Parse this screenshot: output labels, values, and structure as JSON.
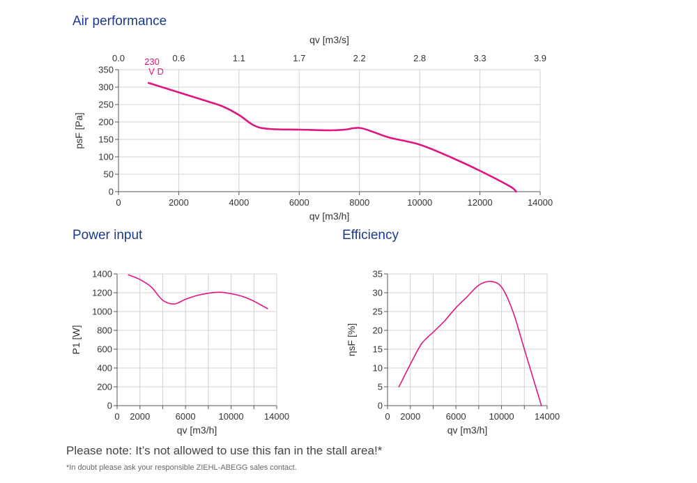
{
  "colors": {
    "curve": "#e0157f",
    "title": "#1a3a8c",
    "grid": "#d0d0d0"
  },
  "titles": {
    "air": "Air performance",
    "power": "Power input",
    "efficiency": "Efficiency"
  },
  "notes": {
    "stall": "Please note: It’s not allowed to use this fan in the stall area!*",
    "contact": "*In doubt please ask your responsible ZIEHL-ABEGG sales contact."
  },
  "chart_data": [
    {
      "type": "line",
      "xlabel": "qv [m3/h]",
      "ylabel": "psF [Pa]",
      "x2label": "qv [m3/s]",
      "xlim": [
        0,
        14000
      ],
      "ylim": [
        0,
        350
      ],
      "xticks": [
        0,
        2000,
        4000,
        6000,
        8000,
        10000,
        12000,
        14000
      ],
      "yticks": [
        0,
        50,
        100,
        150,
        200,
        250,
        300,
        350
      ],
      "x2ticks": [
        "0.0",
        "0.6",
        "1.1",
        "1.7",
        "2.2",
        "2.8",
        "3.3",
        "3.9"
      ],
      "grid": true,
      "annotation": "230 V D",
      "series": [
        {
          "x": [
            1000,
            2000,
            3000,
            3500,
            4000,
            4500,
            5000,
            6000,
            7000,
            7500,
            8000,
            8500,
            9000,
            10000,
            11000,
            12000,
            13000,
            13200
          ],
          "y": [
            312,
            285,
            258,
            243,
            220,
            190,
            180,
            178,
            176,
            178,
            183,
            170,
            155,
            135,
            100,
            60,
            15,
            0
          ]
        }
      ]
    },
    {
      "type": "line",
      "xlabel": "qv [m3/h]",
      "ylabel": "P1 [W]",
      "xlim": [
        0,
        14000
      ],
      "ylim": [
        0,
        1400
      ],
      "xticks": [
        0,
        2000,
        6000,
        10000,
        14000
      ],
      "yticks": [
        0,
        200,
        400,
        600,
        800,
        1000,
        1200,
        1400
      ],
      "grid": true,
      "series": [
        {
          "x": [
            1000,
            2000,
            3000,
            4000,
            5000,
            6000,
            7000,
            8000,
            9000,
            10000,
            11000,
            12000,
            13200
          ],
          "y": [
            1390,
            1340,
            1260,
            1120,
            1080,
            1130,
            1170,
            1195,
            1205,
            1190,
            1160,
            1110,
            1030
          ]
        }
      ]
    },
    {
      "type": "line",
      "xlabel": "qv [m3/h]",
      "ylabel": "ηsF [%]",
      "xlim": [
        0,
        14000
      ],
      "ylim": [
        0,
        35
      ],
      "xticks": [
        0,
        2000,
        6000,
        10000,
        14000
      ],
      "yticks": [
        0,
        5,
        10,
        15,
        20,
        25,
        30,
        35
      ],
      "grid": true,
      "series": [
        {
          "x": [
            1000,
            2000,
            3000,
            4000,
            5000,
            6000,
            7000,
            8000,
            9000,
            10000,
            11000,
            12000,
            13000,
            13500
          ],
          "y": [
            5,
            11,
            16.5,
            19.5,
            22.5,
            26,
            29,
            32,
            33,
            31.5,
            25,
            15,
            5,
            0
          ]
        }
      ]
    }
  ]
}
